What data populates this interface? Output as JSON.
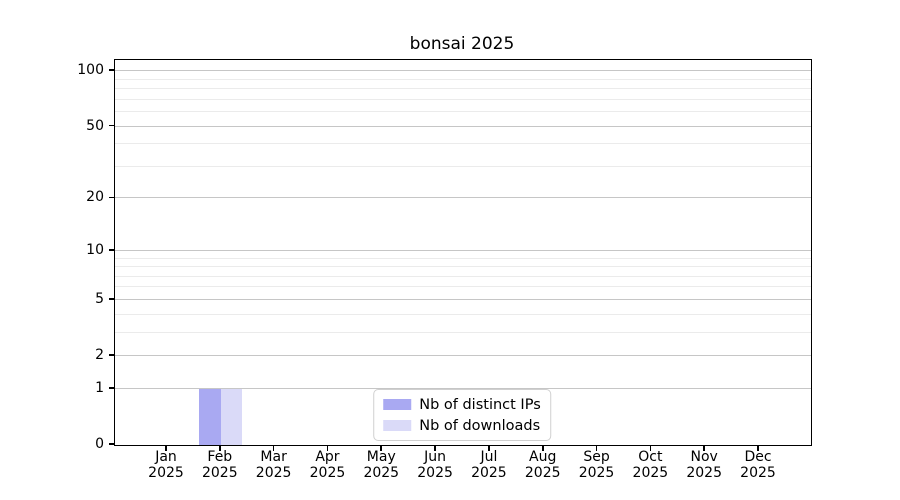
{
  "chart_data": {
    "type": "bar",
    "title": "bonsai 2025",
    "categories": [
      "Jan 2025",
      "Feb 2025",
      "Mar 2025",
      "Apr 2025",
      "May 2025",
      "Jun 2025",
      "Jul 2025",
      "Aug 2025",
      "Sep 2025",
      "Oct 2025",
      "Nov 2025",
      "Dec 2025"
    ],
    "series": [
      {
        "name": "Nb of distinct IPs",
        "color": "#a9a9f2",
        "values": [
          0,
          1,
          0,
          0,
          0,
          0,
          0,
          0,
          0,
          0,
          0,
          0
        ]
      },
      {
        "name": "Nb of downloads",
        "color": "#dadaf8",
        "values": [
          0,
          1,
          0,
          0,
          0,
          0,
          0,
          0,
          0,
          0,
          0,
          0
        ]
      }
    ],
    "xlabel": "",
    "ylabel": "",
    "yscale": "log1p",
    "ylim": [
      0,
      115
    ],
    "yticks": [
      0,
      1,
      2,
      5,
      10,
      20,
      50,
      100
    ],
    "minor_gridlines": [
      3,
      4,
      6,
      7,
      8,
      9,
      30,
      40,
      60,
      70,
      80,
      90
    ],
    "grid": true,
    "legend_position": "lower center"
  }
}
